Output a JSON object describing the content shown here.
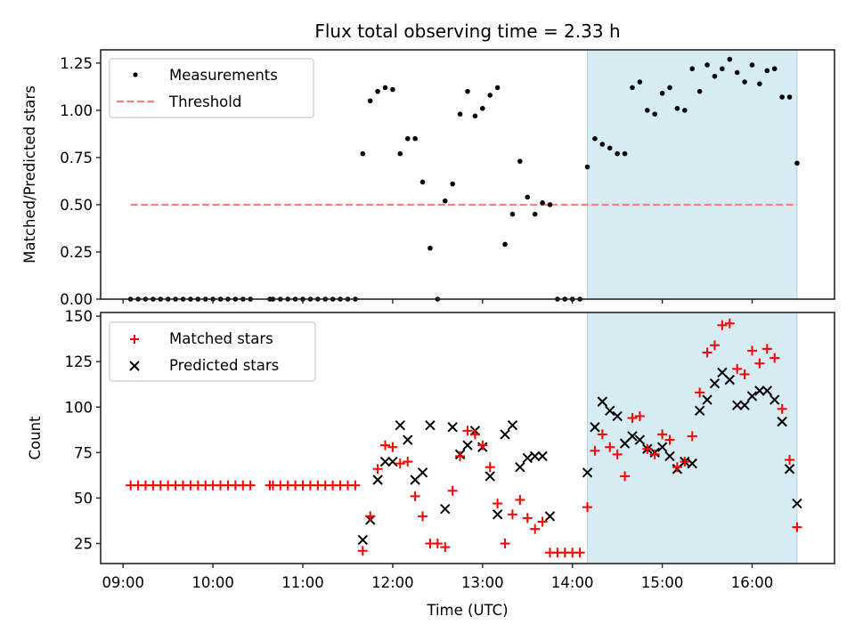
{
  "chart_data": [
    {
      "type": "scatter",
      "panel": "top",
      "title": "Flux total observing time = 2.33 h",
      "xlabel": "",
      "ylabel": "Matched/Predicted stars",
      "ylim": [
        0,
        1.32
      ],
      "yticks": [
        0.0,
        0.25,
        0.5,
        0.75,
        1.0,
        1.25
      ],
      "ytick_labels": [
        "0.00",
        "0.25",
        "0.50",
        "0.75",
        "1.00",
        "1.25"
      ],
      "legend_position": "top-left",
      "threshold": 0.5,
      "series": [
        {
          "name": "Measurements",
          "marker": "dot",
          "color": "#000000"
        },
        {
          "name": "Threshold",
          "marker": "dashed-line",
          "color": "#ff7f7f"
        }
      ]
    },
    {
      "type": "scatter",
      "panel": "bottom",
      "xlabel": "Time (UTC)",
      "ylabel": "Count",
      "ylim": [
        14,
        152
      ],
      "yticks": [
        25,
        50,
        75,
        100,
        125,
        150
      ],
      "ytick_labels": [
        "25",
        "50",
        "75",
        "100",
        "125",
        "150"
      ],
      "legend_position": "top-left",
      "series": [
        {
          "name": "Matched stars",
          "marker": "plus",
          "color": "#ff0000"
        },
        {
          "name": "Predicted stars",
          "marker": "x",
          "color": "#000000"
        }
      ]
    }
  ],
  "shared": {
    "xlim": [
      "08:45",
      "16:55"
    ],
    "xticks": [
      "09:00",
      "10:00",
      "11:00",
      "12:00",
      "13:00",
      "14:00",
      "15:00",
      "16:00"
    ],
    "shaded_interval": {
      "start": "14:10",
      "end": "16:30",
      "color": "#add8e6"
    },
    "threshold_span": {
      "start": "09:05",
      "end": "16:30"
    }
  },
  "points": [
    {
      "t": "09:05",
      "ratio": 0,
      "matched": 57,
      "predicted": null
    },
    {
      "t": "09:10",
      "ratio": 0,
      "matched": 57,
      "predicted": null
    },
    {
      "t": "09:15",
      "ratio": 0,
      "matched": 57,
      "predicted": null
    },
    {
      "t": "09:20",
      "ratio": 0,
      "matched": 57,
      "predicted": null
    },
    {
      "t": "09:25",
      "ratio": 0,
      "matched": 57,
      "predicted": null
    },
    {
      "t": "09:30",
      "ratio": 0,
      "matched": 57,
      "predicted": null
    },
    {
      "t": "09:35",
      "ratio": 0,
      "matched": 57,
      "predicted": null
    },
    {
      "t": "09:40",
      "ratio": 0,
      "matched": 57,
      "predicted": null
    },
    {
      "t": "09:45",
      "ratio": 0,
      "matched": 57,
      "predicted": null
    },
    {
      "t": "09:50",
      "ratio": 0,
      "matched": 57,
      "predicted": null
    },
    {
      "t": "09:55",
      "ratio": 0,
      "matched": 57,
      "predicted": null
    },
    {
      "t": "10:00",
      "ratio": 0,
      "matched": 57,
      "predicted": null
    },
    {
      "t": "10:05",
      "ratio": 0,
      "matched": 57,
      "predicted": null
    },
    {
      "t": "10:10",
      "ratio": 0,
      "matched": 57,
      "predicted": null
    },
    {
      "t": "10:15",
      "ratio": 0,
      "matched": 57,
      "predicted": null
    },
    {
      "t": "10:20",
      "ratio": 0,
      "matched": 57,
      "predicted": null
    },
    {
      "t": "10:25",
      "ratio": 0,
      "matched": 57,
      "predicted": null
    },
    {
      "t": "10:38",
      "ratio": 0,
      "matched": 57,
      "predicted": null
    },
    {
      "t": "10:40",
      "ratio": 0,
      "matched": 57,
      "predicted": null
    },
    {
      "t": "10:45",
      "ratio": 0,
      "matched": 57,
      "predicted": null
    },
    {
      "t": "10:50",
      "ratio": 0,
      "matched": 57,
      "predicted": null
    },
    {
      "t": "10:55",
      "ratio": 0,
      "matched": 57,
      "predicted": null
    },
    {
      "t": "11:00",
      "ratio": 0,
      "matched": 57,
      "predicted": null
    },
    {
      "t": "11:05",
      "ratio": 0,
      "matched": 57,
      "predicted": null
    },
    {
      "t": "11:10",
      "ratio": 0,
      "matched": 57,
      "predicted": null
    },
    {
      "t": "11:15",
      "ratio": 0,
      "matched": 57,
      "predicted": null
    },
    {
      "t": "11:20",
      "ratio": 0,
      "matched": 57,
      "predicted": null
    },
    {
      "t": "11:25",
      "ratio": 0,
      "matched": 57,
      "predicted": null
    },
    {
      "t": "11:30",
      "ratio": 0,
      "matched": 57,
      "predicted": null
    },
    {
      "t": "11:35",
      "ratio": 0,
      "matched": 57,
      "predicted": null
    },
    {
      "t": "11:40",
      "ratio": 0.77,
      "matched": 21,
      "predicted": 27
    },
    {
      "t": "11:45",
      "ratio": 1.05,
      "matched": 40,
      "predicted": 38
    },
    {
      "t": "11:50",
      "ratio": 1.1,
      "matched": 66,
      "predicted": 60
    },
    {
      "t": "11:55",
      "ratio": 1.12,
      "matched": 79,
      "predicted": 70
    },
    {
      "t": "12:00",
      "ratio": 1.11,
      "matched": 78,
      "predicted": 70
    },
    {
      "t": "12:05",
      "ratio": 0.77,
      "matched": 69,
      "predicted": 90
    },
    {
      "t": "12:10",
      "ratio": 0.85,
      "matched": 70,
      "predicted": 82
    },
    {
      "t": "12:15",
      "ratio": 0.85,
      "matched": 51,
      "predicted": 60
    },
    {
      "t": "12:20",
      "ratio": 0.62,
      "matched": 40,
      "predicted": 64
    },
    {
      "t": "12:25",
      "ratio": 0.27,
      "matched": 25,
      "predicted": 90
    },
    {
      "t": "12:30",
      "ratio": 0,
      "matched": 25,
      "predicted": null
    },
    {
      "t": "12:35",
      "ratio": 0.52,
      "matched": 23,
      "predicted": 44
    },
    {
      "t": "12:40",
      "ratio": 0.61,
      "matched": 54,
      "predicted": 89
    },
    {
      "t": "12:45",
      "ratio": 0.98,
      "matched": 73,
      "predicted": 74
    },
    {
      "t": "12:50",
      "ratio": 1.1,
      "matched": 87,
      "predicted": 79
    },
    {
      "t": "12:55",
      "ratio": 0.97,
      "matched": 85,
      "predicted": 87
    },
    {
      "t": "13:00",
      "ratio": 1.01,
      "matched": 79,
      "predicted": 78
    },
    {
      "t": "13:05",
      "ratio": 1.08,
      "matched": 67,
      "predicted": 62
    },
    {
      "t": "13:10",
      "ratio": 1.12,
      "matched": 47,
      "predicted": 41
    },
    {
      "t": "13:15",
      "ratio": 0.29,
      "matched": 25,
      "predicted": 85
    },
    {
      "t": "13:20",
      "ratio": 0.45,
      "matched": 41,
      "predicted": 90
    },
    {
      "t": "13:25",
      "ratio": 0.73,
      "matched": 49,
      "predicted": 67
    },
    {
      "t": "13:30",
      "ratio": 0.54,
      "matched": 39,
      "predicted": 72
    },
    {
      "t": "13:35",
      "ratio": 0.45,
      "matched": 33,
      "predicted": 73
    },
    {
      "t": "13:40",
      "ratio": 0.51,
      "matched": 37,
      "predicted": 73
    },
    {
      "t": "13:45",
      "ratio": 0.5,
      "matched": 20,
      "predicted": 40
    },
    {
      "t": "13:50",
      "ratio": 0,
      "matched": 20,
      "predicted": null
    },
    {
      "t": "13:55",
      "ratio": 0,
      "matched": 20,
      "predicted": null
    },
    {
      "t": "14:00",
      "ratio": 0,
      "matched": 20,
      "predicted": null
    },
    {
      "t": "14:05",
      "ratio": 0,
      "matched": 20,
      "predicted": null
    },
    {
      "t": "14:10",
      "ratio": 0.7,
      "matched": 45,
      "predicted": 64
    },
    {
      "t": "14:15",
      "ratio": 0.85,
      "matched": 76,
      "predicted": 89
    },
    {
      "t": "14:20",
      "ratio": 0.82,
      "matched": 85,
      "predicted": 103
    },
    {
      "t": "14:25",
      "ratio": 0.8,
      "matched": 78,
      "predicted": 98
    },
    {
      "t": "14:30",
      "ratio": 0.77,
      "matched": 74,
      "predicted": 95
    },
    {
      "t": "14:35",
      "ratio": 0.77,
      "matched": 62,
      "predicted": 80
    },
    {
      "t": "14:40",
      "ratio": 1.12,
      "matched": 94,
      "predicted": 84
    },
    {
      "t": "14:45",
      "ratio": 1.15,
      "matched": 95,
      "predicted": 82
    },
    {
      "t": "14:50",
      "ratio": 1.0,
      "matched": 77,
      "predicted": 77
    },
    {
      "t": "14:55",
      "ratio": 0.98,
      "matched": 74,
      "predicted": 75
    },
    {
      "t": "15:00",
      "ratio": 1.09,
      "matched": 85,
      "predicted": 78
    },
    {
      "t": "15:05",
      "ratio": 1.12,
      "matched": 82,
      "predicted": 73
    },
    {
      "t": "15:10",
      "ratio": 1.01,
      "matched": 67,
      "predicted": 66
    },
    {
      "t": "15:15",
      "ratio": 1.0,
      "matched": 70,
      "predicted": 70
    },
    {
      "t": "15:20",
      "ratio": 1.22,
      "matched": 84,
      "predicted": 69
    },
    {
      "t": "15:25",
      "ratio": 1.1,
      "matched": 108,
      "predicted": 98
    },
    {
      "t": "15:30",
      "ratio": 1.24,
      "matched": 130,
      "predicted": 104
    },
    {
      "t": "15:35",
      "ratio": 1.18,
      "matched": 134,
      "predicted": 113
    },
    {
      "t": "15:40",
      "ratio": 1.22,
      "matched": 145,
      "predicted": 119
    },
    {
      "t": "15:45",
      "ratio": 1.27,
      "matched": 146,
      "predicted": 115
    },
    {
      "t": "15:50",
      "ratio": 1.2,
      "matched": 121,
      "predicted": 101
    },
    {
      "t": "15:55",
      "ratio": 1.15,
      "matched": 118,
      "predicted": 101
    },
    {
      "t": "16:00",
      "ratio": 1.24,
      "matched": 131,
      "predicted": 106
    },
    {
      "t": "16:05",
      "ratio": 1.14,
      "matched": 124,
      "predicted": 109
    },
    {
      "t": "16:10",
      "ratio": 1.21,
      "matched": 132,
      "predicted": 109
    },
    {
      "t": "16:15",
      "ratio": 1.22,
      "matched": 127,
      "predicted": 104
    },
    {
      "t": "16:20",
      "ratio": 1.07,
      "matched": 99,
      "predicted": 92
    },
    {
      "t": "16:25",
      "ratio": 1.07,
      "matched": 71,
      "predicted": 66
    },
    {
      "t": "16:30",
      "ratio": 0.72,
      "matched": 34,
      "predicted": 47
    }
  ]
}
